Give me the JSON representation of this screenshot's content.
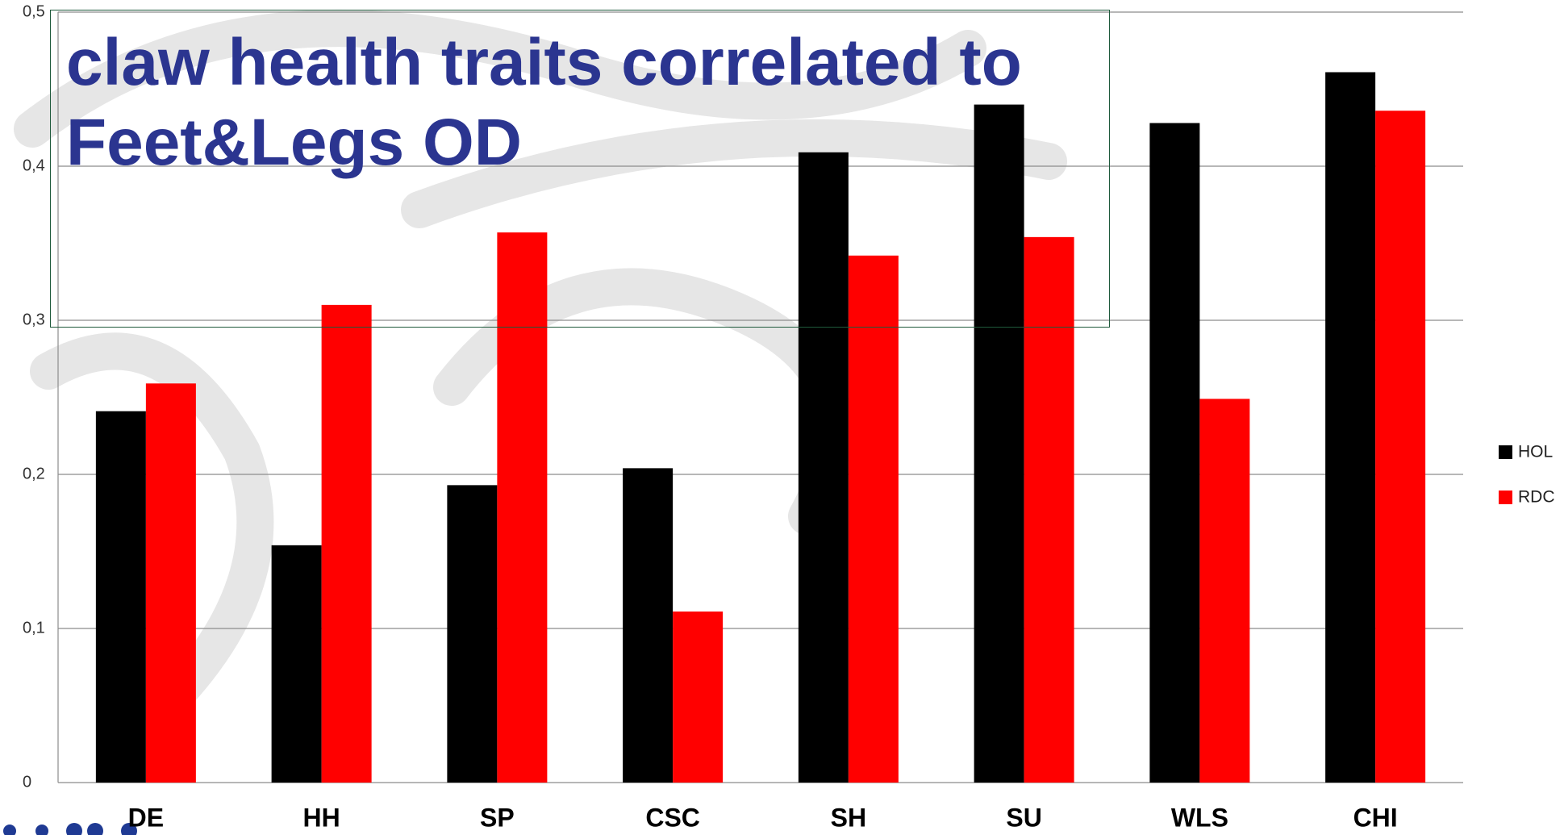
{
  "chart_data": {
    "type": "bar",
    "title": "claw health traits correlated to Feet&Legs OD",
    "categories": [
      "DE",
      "HH",
      "SP",
      "CSC",
      "SH",
      "SU",
      "WLS",
      "CHI"
    ],
    "series": [
      {
        "name": "HOL",
        "color": "#000000",
        "values": [
          0.241,
          0.154,
          0.193,
          0.204,
          0.409,
          0.44,
          0.428,
          0.461
        ]
      },
      {
        "name": "RDC",
        "color": "#ff0000",
        "values": [
          0.259,
          0.31,
          0.357,
          0.111,
          0.342,
          0.354,
          0.249,
          0.436
        ]
      }
    ],
    "ylim": [
      0,
      0.5
    ],
    "yticks": [
      0,
      {
        "value": 0.1,
        "label": "0,1"
      },
      {
        "value": 0.2,
        "label": "0,2"
      },
      {
        "value": 0.3,
        "label": "0,3"
      },
      {
        "value": 0.4,
        "label": "0,4"
      },
      {
        "value": 0.5,
        "label": "0,5"
      }
    ],
    "grid": true,
    "legend": "right"
  }
}
